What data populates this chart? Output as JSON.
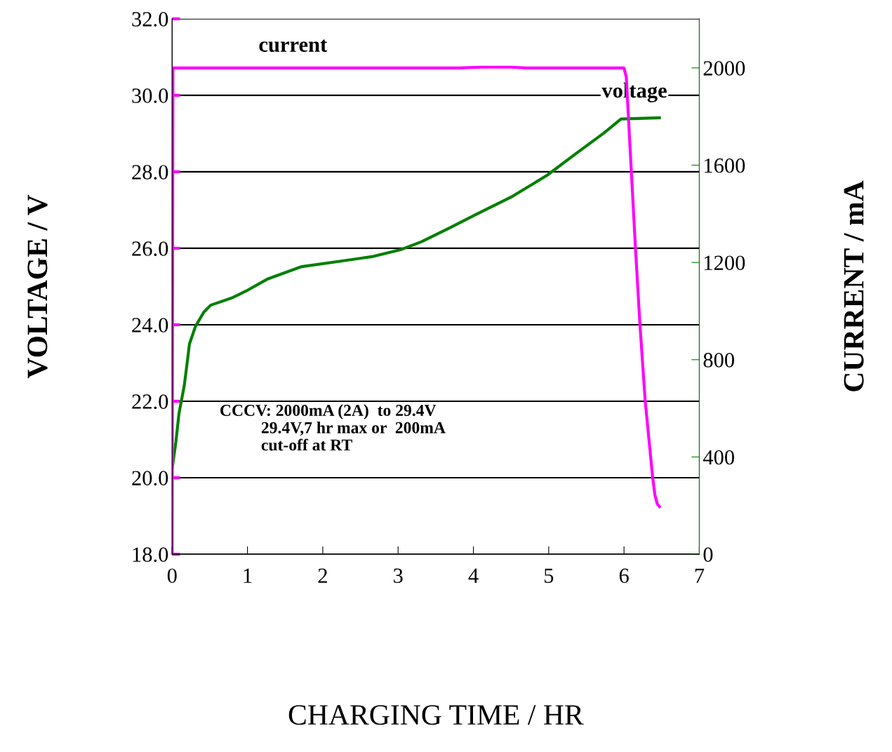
{
  "chart_data": {
    "type": "line",
    "xlabel": "CHARGING TIME / HR",
    "ylabel": "VOLTAGE / V",
    "y2label": "CURRENT / mA",
    "xlim": [
      0,
      7
    ],
    "xticks": [
      0,
      1,
      2,
      3,
      4,
      5,
      6,
      7
    ],
    "ylim": [
      18,
      32
    ],
    "yticks": [
      {
        "value": 18,
        "label": "18.0"
      },
      {
        "value": 20,
        "label": "20.0"
      },
      {
        "value": 22,
        "label": "22.0"
      },
      {
        "value": 24,
        "label": "24.0"
      },
      {
        "value": 26,
        "label": "26.0"
      },
      {
        "value": 28,
        "label": "28.0"
      },
      {
        "value": 30,
        "label": "30.0"
      },
      {
        "value": 32,
        "label": "32.0"
      }
    ],
    "y2lim": [
      0,
      2202
    ],
    "y2ticks": [
      0,
      400,
      800,
      1200,
      1600,
      2000
    ],
    "grid": "y",
    "legend": false,
    "annotations": [
      "CCCV: 2000mA (2A)  to 29.4V\n          29.4V,7 hr max or  200mA\n          cut-off at RT"
    ],
    "series": [
      {
        "name": "current",
        "color": "#ff00ff",
        "axis": "y2",
        "x": [
          0,
          0.01,
          3.8,
          4.1,
          4.5,
          4.7,
          6.0,
          6.03,
          6.1,
          6.15,
          6.21,
          6.28,
          6.38,
          6.41,
          6.44,
          6.47
        ],
        "values": [
          0,
          2000,
          2000,
          2003,
          2003,
          2000,
          2000,
          1962,
          1558,
          1270,
          952,
          635,
          317,
          245,
          208,
          196
        ]
      },
      {
        "name": "voltage",
        "color": "#008000",
        "axis": "y",
        "x": [
          0,
          0.05,
          0.09,
          0.16,
          0.19,
          0.23,
          0.31,
          0.42,
          0.51,
          0.79,
          0.98,
          1.26,
          1.72,
          2.19,
          2.65,
          3.03,
          3.31,
          3.68,
          4.05,
          4.52,
          4.98,
          5.35,
          5.73,
          5.96,
          6.47
        ],
        "values": [
          20.24,
          20.94,
          21.67,
          22.4,
          22.86,
          23.5,
          23.96,
          24.33,
          24.51,
          24.7,
          24.88,
          25.19,
          25.52,
          25.65,
          25.78,
          25.96,
          26.17,
          26.53,
          26.9,
          27.36,
          27.91,
          28.46,
          29.01,
          29.38,
          29.41
        ]
      }
    ]
  }
}
